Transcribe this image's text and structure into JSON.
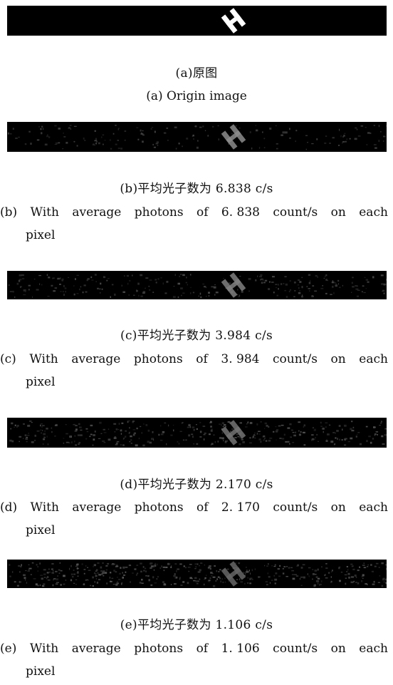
{
  "figures": [
    {
      "id": "a",
      "caption_zh": "(a)原图",
      "caption_en": "(a) Origin image",
      "noise": 0,
      "shape_brightness": 1.0
    },
    {
      "id": "b",
      "caption_zh": "(b)平均光子数为 6.838 c/s",
      "caption_en_prefix": "(b)",
      "caption_en_words": [
        "With",
        "average",
        "photons",
        "of",
        "6. 838",
        "count/s",
        "on",
        "each"
      ],
      "caption_en_line2": "pixel",
      "noise": 0.18,
      "shape_brightness": 0.55
    },
    {
      "id": "c",
      "caption_zh": "(c)平均光子数为 3.984 c/s",
      "caption_en_prefix": "(c)",
      "caption_en_words": [
        "With",
        "average",
        "photons",
        "of",
        "3. 984",
        "count/s",
        "on",
        "each"
      ],
      "caption_en_line2": "pixel",
      "noise": 0.28,
      "shape_brightness": 0.5
    },
    {
      "id": "d",
      "caption_zh": "(d)平均光子数为 2.170 c/s",
      "caption_en_prefix": "(d)",
      "caption_en_words": [
        "With",
        "average",
        "photons",
        "of",
        "2. 170",
        "count/s",
        "on",
        "each"
      ],
      "caption_en_line2": "pixel",
      "noise": 0.4,
      "shape_brightness": 0.45
    },
    {
      "id": "e",
      "caption_zh": "(e)平均光子数为 1.106 c/s",
      "caption_en_prefix": "(e)",
      "caption_en_words": [
        "With",
        "average",
        "photons",
        "of",
        "1. 106",
        "count/s",
        "on",
        "each"
      ],
      "caption_en_line2": "pixel",
      "noise": 0.5,
      "shape_brightness": 0.4
    }
  ]
}
